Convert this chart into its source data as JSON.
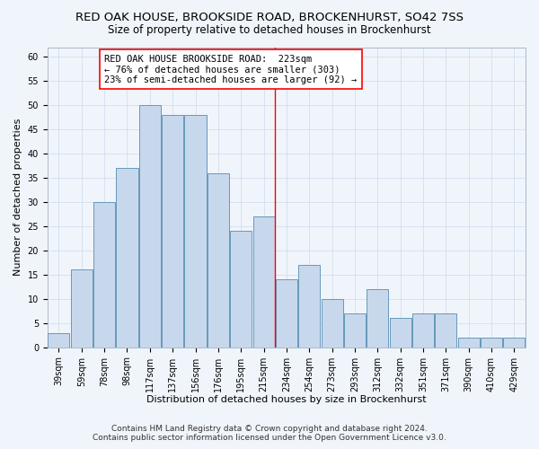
{
  "title": "RED OAK HOUSE, BROOKSIDE ROAD, BROCKENHURST, SO42 7SS",
  "subtitle": "Size of property relative to detached houses in Brockenhurst",
  "xlabel": "Distribution of detached houses by size in Brockenhurst",
  "ylabel": "Number of detached properties",
  "categories": [
    "39sqm",
    "59sqm",
    "78sqm",
    "98sqm",
    "117sqm",
    "137sqm",
    "156sqm",
    "176sqm",
    "195sqm",
    "215sqm",
    "234sqm",
    "254sqm",
    "273sqm",
    "293sqm",
    "312sqm",
    "332sqm",
    "351sqm",
    "371sqm",
    "390sqm",
    "410sqm",
    "429sqm"
  ],
  "values": [
    3,
    16,
    30,
    37,
    50,
    48,
    48,
    36,
    24,
    27,
    14,
    17,
    10,
    7,
    12,
    6,
    7,
    7,
    2,
    2,
    2
  ],
  "bar_color": "#c8d8ec",
  "bar_edgecolor": "#6699bb",
  "bar_linewidth": 0.7,
  "grid_color": "#d0dfee",
  "background_color": "#f0f5fb",
  "annotation_text_line1": "RED OAK HOUSE BROOKSIDE ROAD:  223sqm",
  "annotation_text_line2": "← 76% of detached houses are smaller (303)",
  "annotation_text_line3": "23% of semi-detached houses are larger (92) →",
  "annotation_box_edgecolor": "red",
  "vline_color": "red",
  "vline_x": 9.5,
  "ylim": [
    0,
    62
  ],
  "yticks": [
    0,
    5,
    10,
    15,
    20,
    25,
    30,
    35,
    40,
    45,
    50,
    55,
    60
  ],
  "footer_line1": "Contains HM Land Registry data © Crown copyright and database right 2024.",
  "footer_line2": "Contains public sector information licensed under the Open Government Licence v3.0.",
  "title_fontsize": 9.5,
  "subtitle_fontsize": 8.5,
  "axis_label_fontsize": 8,
  "tick_fontsize": 7,
  "annotation_fontsize": 7.5,
  "footer_fontsize": 6.5
}
